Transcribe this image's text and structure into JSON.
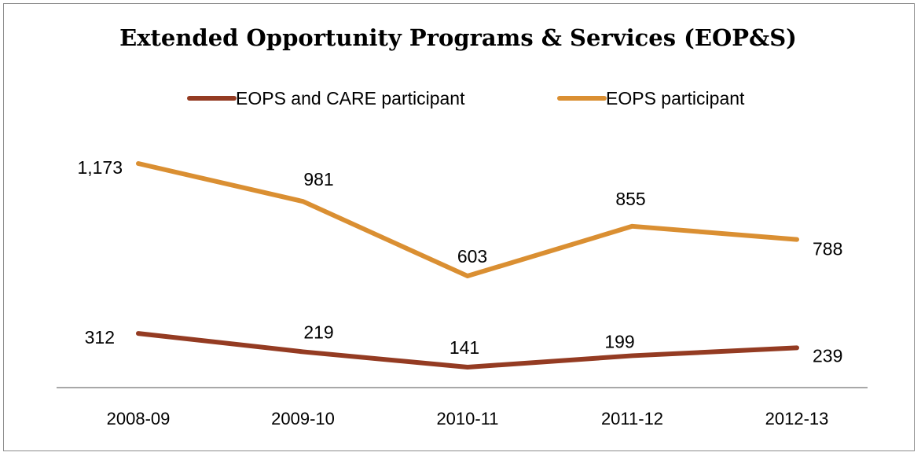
{
  "chart_data": {
    "type": "line",
    "title": "Extended Opportunity Programs & Services  (EOP&S)",
    "xlabel": "",
    "ylabel": "",
    "categories": [
      "2008-09",
      "2009-10",
      "2010-11",
      "2011-12",
      "2012-13"
    ],
    "series": [
      {
        "name": "EOPS and CARE participant",
        "values": [
          312,
          219,
          141,
          199,
          239
        ],
        "labels": [
          "312",
          "219",
          "141",
          "199",
          "239"
        ],
        "color": "#943b22"
      },
      {
        "name": "EOPS participant",
        "values": [
          1173,
          981,
          603,
          855,
          788
        ],
        "labels": [
          "1,173",
          "981",
          "603",
          "855",
          "788"
        ],
        "color": "#da8f32"
      }
    ],
    "ylim": [
      0,
      1400
    ],
    "grid": false,
    "legend_position": "top"
  }
}
